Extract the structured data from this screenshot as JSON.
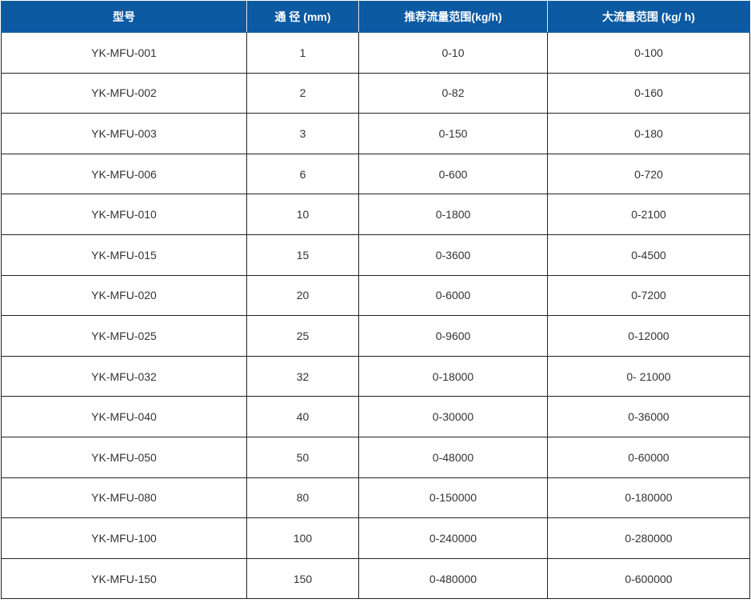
{
  "table": {
    "headers": [
      "型号",
      "通 径 (mm)",
      "推荐流量范围(kg/h)",
      "大流量范围 (kg/ h)"
    ],
    "rows": [
      [
        "YK-MFU-001",
        "1",
        "0-10",
        "0-100"
      ],
      [
        "YK-MFU-002",
        "2",
        "0-82",
        "0-160"
      ],
      [
        "YK-MFU-003",
        "3",
        "0-150",
        "0-180"
      ],
      [
        "YK-MFU-006",
        "6",
        "0-600",
        "0-720"
      ],
      [
        "YK-MFU-010",
        "10",
        "0-1800",
        "0-2100"
      ],
      [
        "YK-MFU-015",
        "15",
        "0-3600",
        "0-4500"
      ],
      [
        "YK-MFU-020",
        "20",
        "0-6000",
        "0-7200"
      ],
      [
        "YK-MFU-025",
        "25",
        "0-9600",
        "0-12000"
      ],
      [
        "YK-MFU-032",
        "32",
        "0-18000",
        "0- 21000"
      ],
      [
        "YK-MFU-040",
        "40",
        "0-30000",
        "0-36000"
      ],
      [
        "YK-MFU-050",
        "50",
        "0-48000",
        "0-60000"
      ],
      [
        "YK-MFU-080",
        "80",
        "0-150000",
        "0-180000"
      ],
      [
        "YK-MFU-100",
        "100",
        "0-240000",
        "0-280000"
      ],
      [
        "YK-MFU-150",
        "150",
        "0-480000",
        "0-600000"
      ]
    ]
  },
  "colors": {
    "header_bg": "#0b5aa2",
    "header_text": "#ffffff",
    "cell_text": "#333333",
    "border": "#222222"
  }
}
